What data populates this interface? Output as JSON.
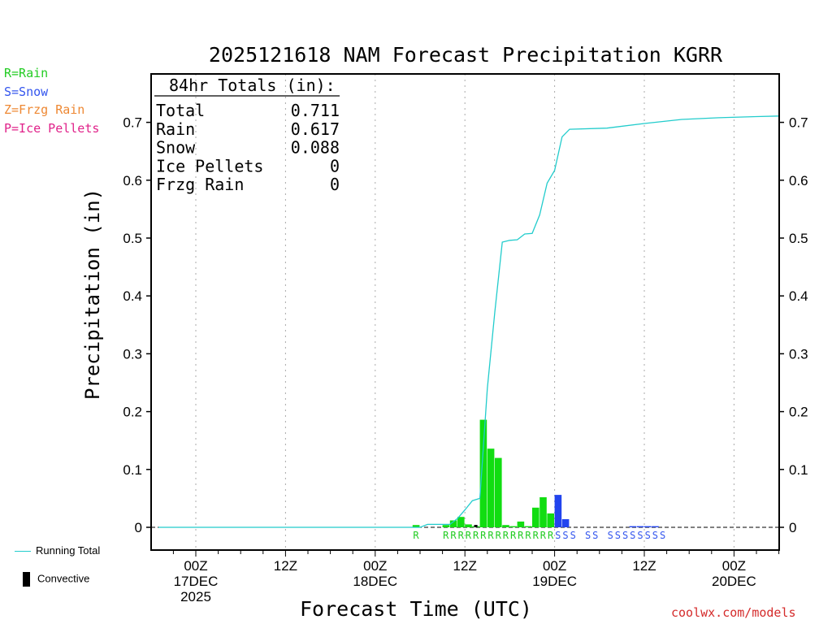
{
  "legend_left": [
    {
      "text": "R=Rain",
      "color": "#22cc22"
    },
    {
      "text": "S=Snow",
      "color": "#3355ee"
    },
    {
      "text": "Z=Frzg Rain",
      "color": "#ee8833"
    },
    {
      "text": "P=Ice Pellets",
      "color": "#e0228a"
    }
  ],
  "bottom_legend": {
    "running_total": "Running Total",
    "convective": "Convective",
    "running_total_color": "#22cccc",
    "convective_color": "#000000"
  },
  "watermark": "coolwx.com/models",
  "chart_data": {
    "type": "bar",
    "title": "2025121618 NAM Forecast Precipitation KGRR",
    "xlabel": "Forecast Time (UTC)",
    "ylabel": "Precipitation (in)",
    "ylim": [
      0,
      0.78
    ],
    "yticks": [
      "0",
      "0.1",
      "0.2",
      "0.3",
      "0.4",
      "0.5",
      "0.6",
      "0.7"
    ],
    "xlim": [
      -4.5,
      79.5
    ],
    "xticks": [
      {
        "hour": 0,
        "label": "00Z",
        "sub1": "17DEC",
        "sub2": "2025"
      },
      {
        "hour": 12,
        "label": "12Z",
        "sub1": "",
        "sub2": ""
      },
      {
        "hour": 24,
        "label": "00Z",
        "sub1": "18DEC",
        "sub2": ""
      },
      {
        "hour": 36,
        "label": "12Z",
        "sub1": "",
        "sub2": ""
      },
      {
        "hour": 48,
        "label": "00Z",
        "sub1": "19DEC",
        "sub2": ""
      },
      {
        "hour": 60,
        "label": "12Z",
        "sub1": "",
        "sub2": ""
      },
      {
        "hour": 72,
        "label": "00Z",
        "sub1": "20DEC",
        "sub2": ""
      }
    ],
    "grid": "vertical dotted",
    "totals_box": {
      "header": "84hr Totals (in):",
      "rows": [
        {
          "label": "Total",
          "value": "0.711"
        },
        {
          "label": "Rain",
          "value": "0.617"
        },
        {
          "label": "Snow",
          "value": "0.088"
        },
        {
          "label": "Ice Pellets",
          "value": "0"
        },
        {
          "label": "Frzg Rain",
          "value": "0"
        }
      ]
    },
    "bars": [
      {
        "hour": 30,
        "value": 0.004,
        "type": "R"
      },
      {
        "hour": 34,
        "value": 0.004,
        "type": "R"
      },
      {
        "hour": 35,
        "value": 0.012,
        "type": "R"
      },
      {
        "hour": 36,
        "value": 0.018,
        "type": "R"
      },
      {
        "hour": 37,
        "value": 0.005,
        "type": "R"
      },
      {
        "hour": 38,
        "value": 0.002,
        "type": "R"
      },
      {
        "hour": 39,
        "value": 0.186,
        "type": "R"
      },
      {
        "hour": 40,
        "value": 0.136,
        "type": "R"
      },
      {
        "hour": 41,
        "value": 0.12,
        "type": "R"
      },
      {
        "hour": 42,
        "value": 0.004,
        "type": "R"
      },
      {
        "hour": 43,
        "value": 0.002,
        "type": "R"
      },
      {
        "hour": 44,
        "value": 0.01,
        "type": "R"
      },
      {
        "hour": 45,
        "value": 0.002,
        "type": "R"
      },
      {
        "hour": 46,
        "value": 0.034,
        "type": "R"
      },
      {
        "hour": 47,
        "value": 0.052,
        "type": "R"
      },
      {
        "hour": 48,
        "value": 0.024,
        "type": "R"
      },
      {
        "hour": 49,
        "value": 0.056,
        "type": "S"
      },
      {
        "hour": 50,
        "value": 0.014,
        "type": "S"
      },
      {
        "hour": 59,
        "value": 0.002,
        "type": "S"
      },
      {
        "hour": 60,
        "value": 0.002,
        "type": "S"
      },
      {
        "hour": 61,
        "value": 0.002,
        "type": "S"
      },
      {
        "hour": 62,
        "value": 0.002,
        "type": "S"
      }
    ],
    "convective": [
      {
        "hour": 38,
        "value": 0.001
      }
    ],
    "running_total": {
      "x": [
        -5,
        30,
        31,
        34,
        35,
        36,
        37,
        38,
        39,
        40,
        41,
        42,
        43,
        44,
        45,
        46,
        47,
        48,
        49,
        50,
        55,
        60,
        65,
        70,
        75,
        79.5
      ],
      "y": [
        0,
        0,
        0.005,
        0.005,
        0.015,
        0.03,
        0.046,
        0.05,
        0.24,
        0.372,
        0.493,
        0.496,
        0.497,
        0.507,
        0.508,
        0.54,
        0.595,
        0.617,
        0.675,
        0.688,
        0.69,
        0.698,
        0.705,
        0.708,
        0.71,
        0.711
      ]
    },
    "ptype_markers": {
      "R": {
        "color": "#22cc22",
        "hours": [
          30,
          34,
          35,
          36,
          37,
          38,
          39,
          40,
          41,
          42,
          43,
          44,
          45,
          46,
          47,
          48
        ]
      },
      "S": {
        "color": "#3355ee",
        "hours": [
          49,
          50,
          51,
          53,
          54,
          56,
          57,
          58,
          59,
          60,
          61,
          62,
          63
        ]
      }
    }
  }
}
